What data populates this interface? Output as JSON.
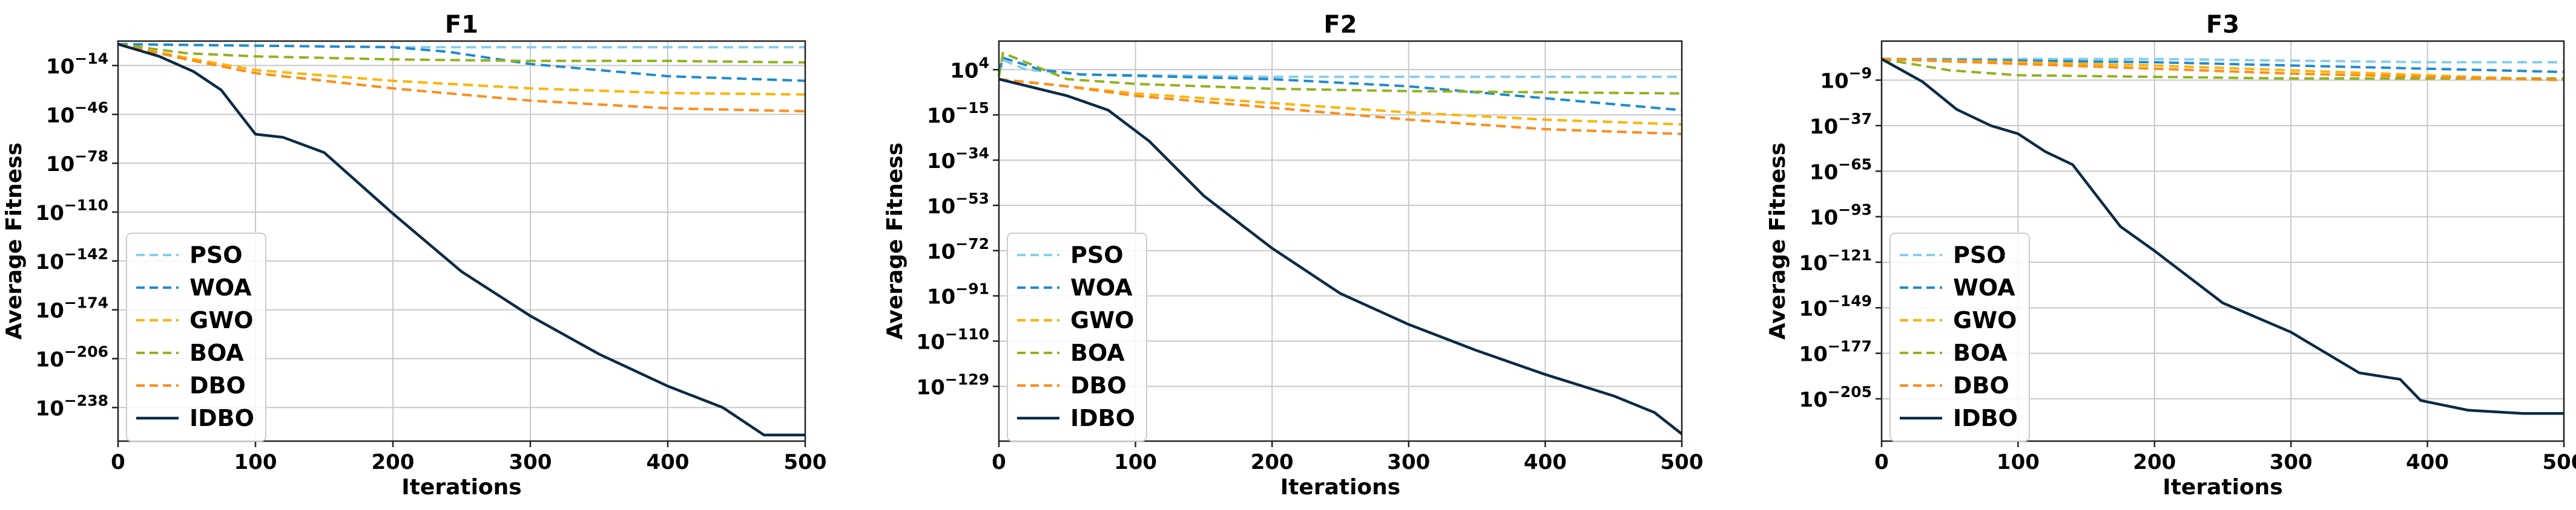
{
  "chart_data": [
    {
      "type": "line",
      "title": "F1",
      "xlabel": "Iterations",
      "ylabel": "Average Fitness",
      "yscale": "log",
      "grid": true,
      "legend_position": "lower-left",
      "xlim": [
        0,
        500
      ],
      "xticks": [
        0,
        100,
        200,
        300,
        400,
        500
      ],
      "ylim_exp": [
        -260,
        2
      ],
      "yticks": [
        {
          "exp": -14,
          "base": "10",
          "sup": "−14"
        },
        {
          "exp": -46,
          "base": "10",
          "sup": "−46"
        },
        {
          "exp": -78,
          "base": "10",
          "sup": "−78"
        },
        {
          "exp": -110,
          "base": "10",
          "sup": "−110"
        },
        {
          "exp": -142,
          "base": "10",
          "sup": "−142"
        },
        {
          "exp": -174,
          "base": "10",
          "sup": "−174"
        },
        {
          "exp": -206,
          "base": "10",
          "sup": "−206"
        },
        {
          "exp": -238,
          "base": "10",
          "sup": "−238"
        }
      ],
      "series": [
        {
          "name": "PSO",
          "color": "#87ceeb",
          "dashed": true,
          "x": [
            0,
            100,
            200,
            300,
            400,
            500
          ],
          "y_exp": [
            0,
            -1,
            -2,
            -2,
            -2,
            -2
          ]
        },
        {
          "name": "WOA",
          "color": "#1f8ad0",
          "dashed": true,
          "x": [
            0,
            100,
            200,
            240,
            300,
            400,
            500
          ],
          "y_exp": [
            0,
            -1,
            -2,
            -5,
            -13,
            -21,
            -24
          ]
        },
        {
          "name": "GWO",
          "color": "#ffb300",
          "dashed": true,
          "x": [
            0,
            50,
            100,
            200,
            300,
            400,
            500
          ],
          "y_exp": [
            0,
            -9,
            -17,
            -24,
            -29,
            -32,
            -33
          ]
        },
        {
          "name": "BOA",
          "color": "#8fb31d",
          "dashed": true,
          "x": [
            0,
            50,
            100,
            200,
            300,
            400,
            500
          ],
          "y_exp": [
            0,
            -6,
            -8,
            -10,
            -11,
            -11,
            -12
          ]
        },
        {
          "name": "DBO",
          "color": "#ff8c1a",
          "dashed": true,
          "x": [
            0,
            50,
            100,
            200,
            300,
            400,
            500
          ],
          "y_exp": [
            0,
            -10,
            -19,
            -29,
            -37,
            -42,
            -44
          ]
        },
        {
          "name": "IDBO",
          "color": "#0b2a45",
          "dashed": false,
          "x": [
            0,
            30,
            55,
            75,
            100,
            120,
            150,
            200,
            250,
            300,
            350,
            400,
            440,
            470,
            500
          ],
          "y_exp": [
            0,
            -8,
            -18,
            -30,
            -59,
            -61,
            -71,
            -111,
            -149,
            -178,
            -203,
            -224,
            -238,
            -256,
            -256
          ]
        }
      ]
    },
    {
      "type": "line",
      "title": "F2",
      "xlabel": "Iterations",
      "ylabel": "Average Fitness",
      "yscale": "log",
      "grid": true,
      "legend_position": "lower-left",
      "xlim": [
        0,
        500
      ],
      "xticks": [
        0,
        100,
        200,
        300,
        400,
        500
      ],
      "ylim_exp": [
        -152,
        16
      ],
      "yticks": [
        {
          "exp": 4,
          "base": "10",
          "sup": "4"
        },
        {
          "exp": -15,
          "base": "10",
          "sup": "−15"
        },
        {
          "exp": -34,
          "base": "10",
          "sup": "−34"
        },
        {
          "exp": -53,
          "base": "10",
          "sup": "−53"
        },
        {
          "exp": -72,
          "base": "10",
          "sup": "−72"
        },
        {
          "exp": -91,
          "base": "10",
          "sup": "−91"
        },
        {
          "exp": -110,
          "base": "10",
          "sup": "−110"
        },
        {
          "exp": -129,
          "base": "10",
          "sup": "−129"
        }
      ],
      "series": [
        {
          "name": "PSO",
          "color": "#87ceeb",
          "dashed": true,
          "x": [
            0,
            3,
            20,
            60,
            200,
            300,
            500
          ],
          "y_exp": [
            2,
            8,
            4,
            2,
            1,
            1,
            1
          ]
        },
        {
          "name": "WOA",
          "color": "#1f8ad0",
          "dashed": true,
          "x": [
            0,
            3,
            30,
            60,
            200,
            300,
            400,
            500
          ],
          "y_exp": [
            3,
            9,
            4,
            2,
            0,
            -3,
            -8,
            -13
          ]
        },
        {
          "name": "GWO",
          "color": "#ffb300",
          "dashed": true,
          "x": [
            0,
            50,
            100,
            200,
            300,
            400,
            500
          ],
          "y_exp": [
            0,
            -3,
            -6,
            -10,
            -14,
            -17,
            -19
          ]
        },
        {
          "name": "BOA",
          "color": "#8fb31d",
          "dashed": true,
          "x": [
            0,
            3,
            50,
            100,
            200,
            300,
            500
          ],
          "y_exp": [
            1,
            11,
            0,
            -2,
            -4,
            -5,
            -6
          ]
        },
        {
          "name": "DBO",
          "color": "#ff8c1a",
          "dashed": true,
          "x": [
            0,
            50,
            100,
            200,
            300,
            400,
            500
          ],
          "y_exp": [
            0,
            -3,
            -7,
            -12,
            -17,
            -21,
            -23
          ]
        },
        {
          "name": "IDBO",
          "color": "#0b2a45",
          "dashed": false,
          "x": [
            0,
            50,
            80,
            110,
            150,
            200,
            250,
            300,
            350,
            400,
            450,
            480,
            500
          ],
          "y_exp": [
            0,
            -7,
            -13,
            -26,
            -49,
            -71,
            -90,
            -103,
            -114,
            -124,
            -133,
            -140,
            -149
          ]
        }
      ]
    },
    {
      "type": "line",
      "title": "F3",
      "xlabel": "Iterations",
      "ylabel": "Average Fitness",
      "yscale": "log",
      "grid": true,
      "legend_position": "lower-left",
      "xlim": [
        0,
        500
      ],
      "xticks": [
        0,
        100,
        200,
        300,
        400,
        500
      ],
      "ylim_exp": [
        -231,
        15
      ],
      "yticks": [
        {
          "exp": -9,
          "base": "10",
          "sup": "−9"
        },
        {
          "exp": -37,
          "base": "10",
          "sup": "−37"
        },
        {
          "exp": -65,
          "base": "10",
          "sup": "−65"
        },
        {
          "exp": -93,
          "base": "10",
          "sup": "−93"
        },
        {
          "exp": -121,
          "base": "10",
          "sup": "−121"
        },
        {
          "exp": -149,
          "base": "10",
          "sup": "−149"
        },
        {
          "exp": -177,
          "base": "10",
          "sup": "−177"
        },
        {
          "exp": -205,
          "base": "10",
          "sup": "−205"
        }
      ],
      "series": [
        {
          "name": "PSO",
          "color": "#87ceeb",
          "dashed": true,
          "x": [
            0,
            100,
            200,
            300,
            400,
            500
          ],
          "y_exp": [
            4,
            4,
            4,
            3,
            2,
            2
          ]
        },
        {
          "name": "WOA",
          "color": "#1f8ad0",
          "dashed": true,
          "x": [
            0,
            100,
            200,
            300,
            400,
            500
          ],
          "y_exp": [
            4,
            3,
            2,
            0,
            -2,
            -4
          ]
        },
        {
          "name": "GWO",
          "color": "#ffb300",
          "dashed": true,
          "x": [
            0,
            100,
            200,
            300,
            400,
            500
          ],
          "y_exp": [
            4,
            2,
            0,
            -3,
            -6,
            -9
          ]
        },
        {
          "name": "BOA",
          "color": "#8fb31d",
          "dashed": true,
          "x": [
            0,
            50,
            100,
            200,
            300,
            400,
            500
          ],
          "y_exp": [
            4,
            -3,
            -6,
            -7,
            -8,
            -8,
            -8
          ]
        },
        {
          "name": "DBO",
          "color": "#ff8c1a",
          "dashed": true,
          "x": [
            0,
            100,
            200,
            300,
            400,
            500
          ],
          "y_exp": [
            4,
            1,
            -2,
            -5,
            -7,
            -9
          ]
        },
        {
          "name": "IDBO",
          "color": "#0b2a45",
          "dashed": false,
          "x": [
            0,
            30,
            55,
            80,
            100,
            120,
            140,
            175,
            200,
            250,
            300,
            350,
            380,
            395,
            430,
            470,
            500
          ],
          "y_exp": [
            4,
            -10,
            -27,
            -37,
            -42,
            -53,
            -61,
            -99,
            -114,
            -146,
            -164,
            -189,
            -193,
            -206,
            -212,
            -214,
            -214
          ]
        }
      ]
    }
  ]
}
